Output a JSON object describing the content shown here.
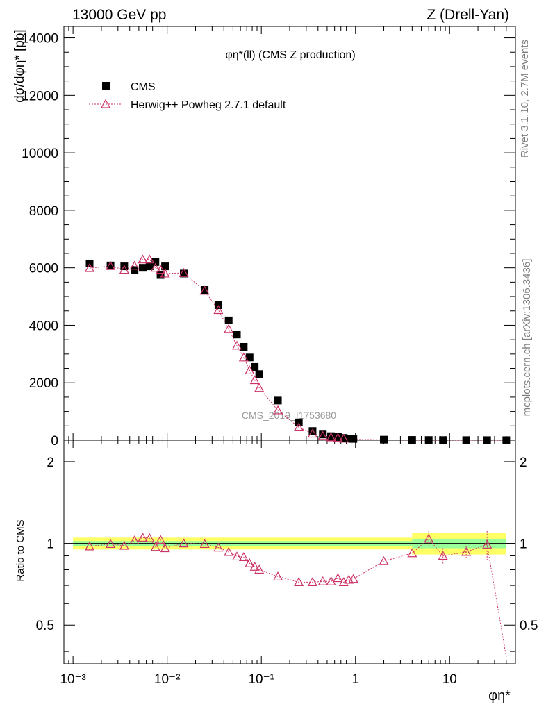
{
  "header": {
    "left": "13000 GeV pp",
    "right": "Z (Drell-Yan)"
  },
  "side": {
    "rivet": "Rivet 3.1.10,  2.7M events",
    "mcplots": "mcplots.cern.ch [arXiv:1306.3436]"
  },
  "plot_title": "φη*(ll) (CMS Z production)",
  "watermark": "CMS_2019_I1753680",
  "ylabel_top": "dσ/dφη* [pb]",
  "ylabel_bottom": "Ratio to CMS",
  "xlabel": "φη*",
  "legend": {
    "cms": "CMS",
    "mc": "Herwig++ Powheg 2.7.1 default"
  },
  "colors": {
    "data": "#000000",
    "mc": "#cc3366",
    "band_inner": "#99ff99",
    "band_outer": "#ffff66"
  },
  "chart_data": {
    "type": "scatter",
    "x_scale": "log",
    "xlim": [
      0.0008,
      50
    ],
    "x_ticks": [
      "10^-3",
      "10^-2",
      "10^-1",
      "1",
      "10"
    ],
    "top": {
      "ylim": [
        0,
        14400
      ],
      "y_ticks": [
        0,
        2000,
        4000,
        6000,
        8000,
        10000,
        12000,
        14000
      ],
      "series": [
        {
          "name": "CMS",
          "x": [
            0.0015,
            0.0025,
            0.0035,
            0.0045,
            0.0055,
            0.0065,
            0.0075,
            0.0085,
            0.0095,
            0.015,
            0.025,
            0.035,
            0.045,
            0.055,
            0.065,
            0.075,
            0.085,
            0.095,
            0.15,
            0.25,
            0.35,
            0.45,
            0.55,
            0.65,
            0.75,
            0.85,
            0.95,
            2,
            4,
            6,
            8.5,
            15,
            25,
            40
          ],
          "y": [
            6150,
            6080,
            6050,
            5920,
            6000,
            6050,
            6200,
            5750,
            6050,
            5800,
            5230,
            4700,
            4170,
            3680,
            3250,
            2880,
            2550,
            2300,
            1380,
            620,
            320,
            200,
            140,
            110,
            80,
            55,
            45,
            20,
            10,
            6,
            4,
            3,
            2,
            1
          ]
        },
        {
          "name": "Herwig++ Powheg 2.7.1 default",
          "x": [
            0.0015,
            0.0025,
            0.0035,
            0.0045,
            0.0055,
            0.0065,
            0.0075,
            0.0085,
            0.0095,
            0.015,
            0.025,
            0.035,
            0.045,
            0.055,
            0.065,
            0.075,
            0.085,
            0.095,
            0.15,
            0.25,
            0.35,
            0.45,
            0.55,
            0.65,
            0.75,
            0.85,
            0.95,
            2,
            4,
            6,
            8.5,
            15,
            25,
            40
          ],
          "y": [
            5990,
            6060,
            5930,
            6070,
            6290,
            6290,
            6000,
            5930,
            5800,
            5820,
            5200,
            4530,
            3870,
            3290,
            2880,
            2430,
            2090,
            1820,
            1040,
            450,
            230,
            150,
            100,
            80,
            55,
            40,
            30,
            15,
            8,
            5,
            3,
            2,
            1.5,
            0.5
          ]
        }
      ]
    },
    "bottom": {
      "ylim": [
        0.36,
        2.4
      ],
      "y_scale": "log",
      "y_ticks": [
        0.5,
        1,
        2
      ],
      "ratio": {
        "x": [
          0.0015,
          0.0025,
          0.0035,
          0.0045,
          0.0055,
          0.0065,
          0.0075,
          0.0085,
          0.0095,
          0.015,
          0.025,
          0.035,
          0.045,
          0.055,
          0.065,
          0.075,
          0.085,
          0.095,
          0.15,
          0.25,
          0.35,
          0.45,
          0.55,
          0.65,
          0.75,
          0.85,
          0.95,
          2,
          4,
          6,
          8.5,
          15,
          25,
          40
        ],
        "y": [
          0.975,
          0.995,
          0.98,
          1.025,
          1.05,
          1.045,
          0.97,
          1.03,
          0.96,
          1.0,
          0.995,
          0.965,
          0.93,
          0.895,
          0.89,
          0.845,
          0.82,
          0.8,
          0.755,
          0.72,
          0.72,
          0.725,
          0.725,
          0.745,
          0.72,
          0.735,
          0.74,
          0.86,
          0.92,
          1.04,
          0.9,
          0.93,
          0.99,
          0.38
        ]
      },
      "band": {
        "x_edges": [
          0.001,
          4,
          4,
          40
        ],
        "inner_half": [
          0.02,
          0.02,
          0.04,
          0.04
        ],
        "outer_half": [
          0.05,
          0.05,
          0.09,
          0.09
        ]
      }
    }
  }
}
